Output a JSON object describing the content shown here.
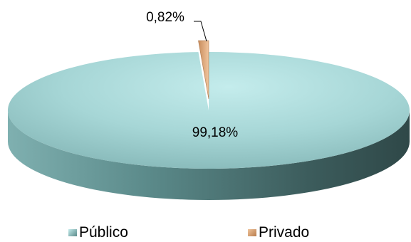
{
  "chart_data": {
    "type": "pie",
    "style": "3d",
    "slices": [
      {
        "name": "Público",
        "value": 99.18,
        "label": "99,18%",
        "color": "#a8d8d8"
      },
      {
        "name": "Privado",
        "value": 0.82,
        "label": "0,82%",
        "color": "#e8b68a"
      }
    ],
    "legend": {
      "position": "bottom",
      "items": [
        "Público",
        "Privado"
      ]
    }
  }
}
